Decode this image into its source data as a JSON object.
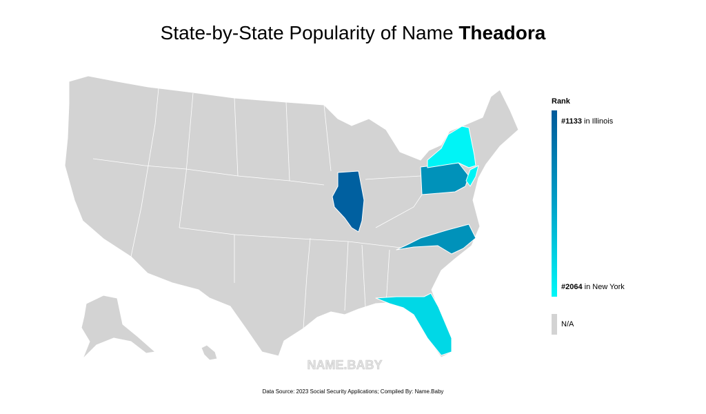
{
  "title": {
    "prefix": "State-by-State Popularity of Name",
    "name": "Theadora"
  },
  "legend": {
    "title": "Rank",
    "top": {
      "rank": "#1133",
      "place": "in Illinois"
    },
    "bottom": {
      "rank": "#2064",
      "place": "in New York"
    },
    "na": "N/A"
  },
  "watermark": "NAME.BABY",
  "source": "Data Source: 2023 Social Security Applications; Compiled By: Name.Baby"
}
